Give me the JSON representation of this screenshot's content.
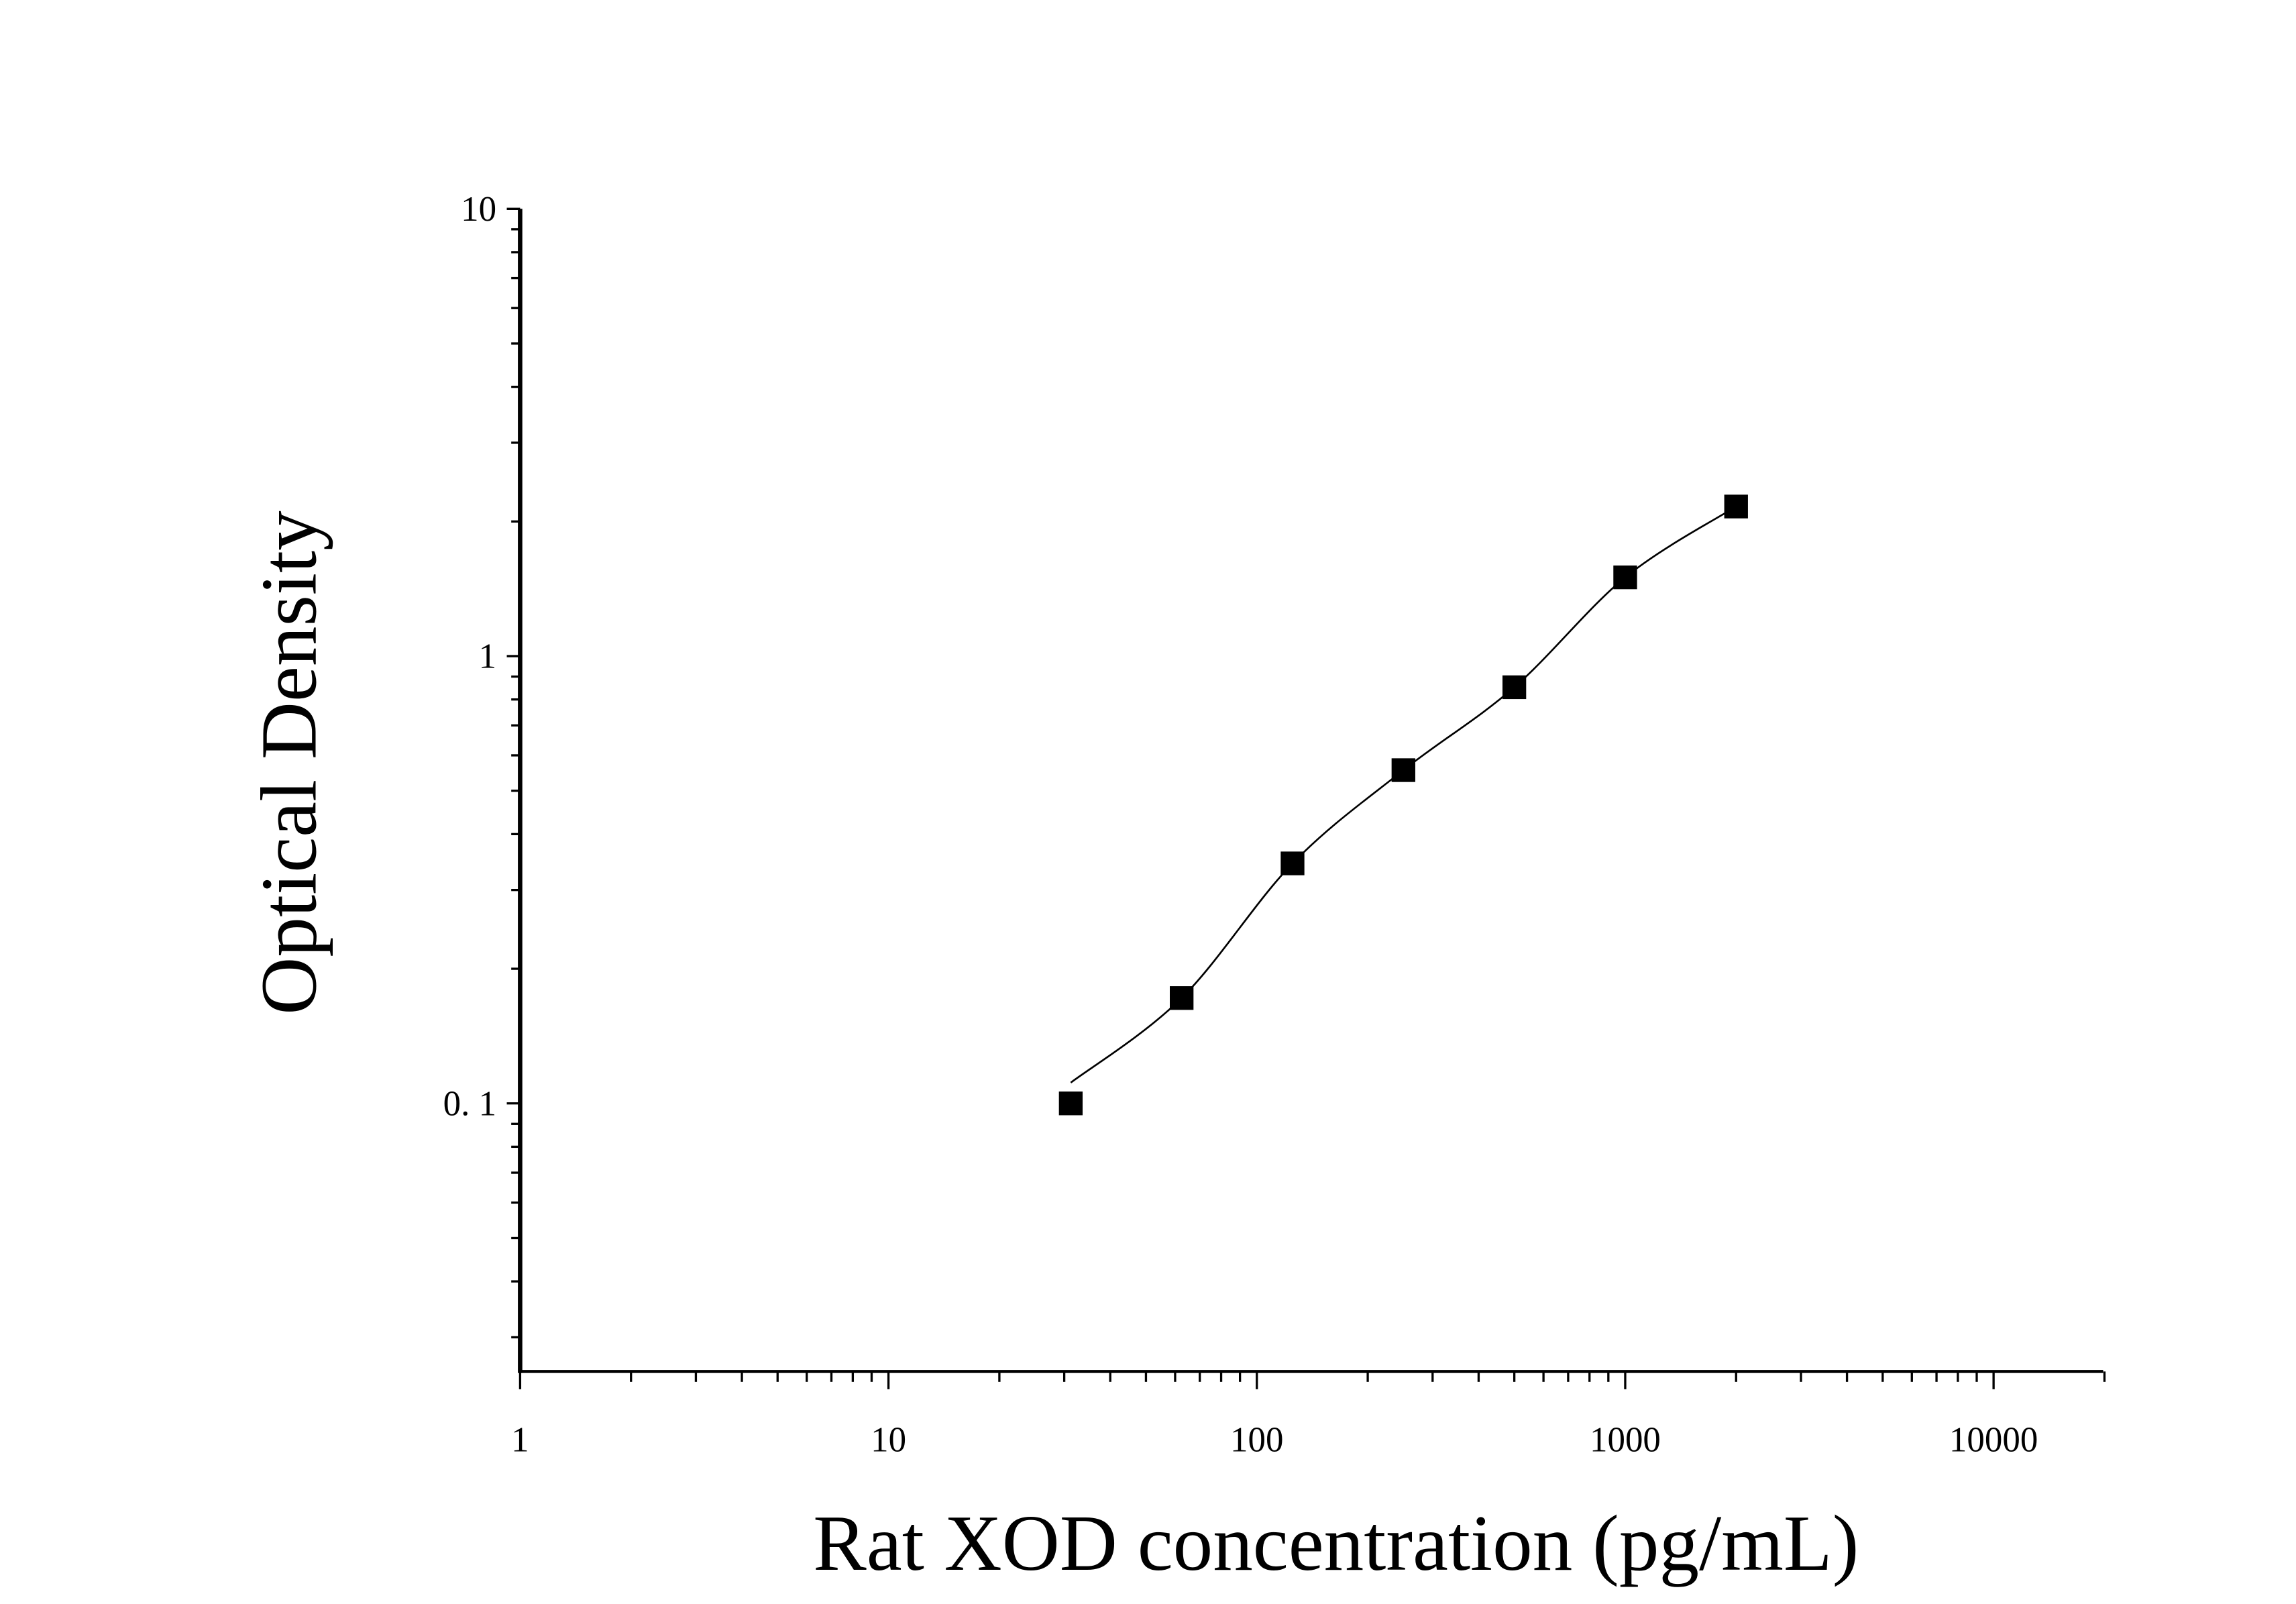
{
  "chart_data": {
    "type": "scatter",
    "title": "",
    "xlabel": "Rat XOD concentration (pg/mL)",
    "ylabel": "Optical Density",
    "xscale": "log",
    "yscale": "log",
    "xlim": [
      1,
      20000
    ],
    "ylim": [
      0.025,
      10
    ],
    "x_ticks": [
      {
        "value": 1,
        "label": "1"
      },
      {
        "value": 10,
        "label": "10"
      },
      {
        "value": 100,
        "label": "100"
      },
      {
        "value": 1000,
        "label": "1000"
      },
      {
        "value": 10000,
        "label": "10000"
      }
    ],
    "y_ticks": [
      {
        "value": 0.1,
        "label": "0. 1"
      },
      {
        "value": 1,
        "label": "1"
      },
      {
        "value": 10,
        "label": "10"
      }
    ],
    "grid": false,
    "legend": "none",
    "marker": "square",
    "fit_line": true,
    "colors": {
      "marker": "#000000",
      "line": "#000000"
    },
    "x": [
      31.25,
      62.5,
      125,
      250,
      500,
      1000,
      2000
    ],
    "y": [
      0.1,
      0.172,
      0.344,
      0.556,
      0.852,
      1.5,
      2.16
    ]
  }
}
